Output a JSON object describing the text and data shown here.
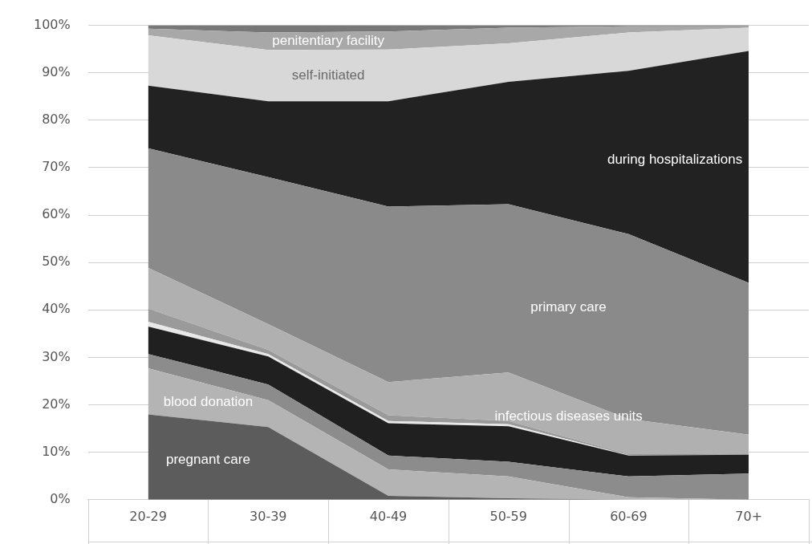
{
  "chart_data": {
    "type": "area",
    "stacked": true,
    "categories": [
      "20-29",
      "30-39",
      "40-49",
      "50-59",
      "60-69",
      "70+"
    ],
    "series": [
      {
        "name": "pregnant care",
        "color": "#5c5c5c",
        "values": [
          18,
          15.3,
          0.8,
          0.3,
          0,
          0
        ]
      },
      {
        "name": "blood donation",
        "color": "#b4b4b4",
        "values": [
          9.7,
          5.7,
          5.6,
          4.6,
          0.5,
          0
        ]
      },
      {
        "color": "#8c8c8c",
        "values": [
          3,
          3.3,
          2.9,
          3.1,
          4.4,
          5.5
        ]
      },
      {
        "color": "#202020",
        "values": [
          5.8,
          5.9,
          6.8,
          7.5,
          4.4,
          4
        ]
      },
      {
        "color": "#e8e8e8",
        "values": [
          1,
          0.5,
          0.5,
          0.4,
          0.1,
          0
        ]
      },
      {
        "color": "#9a9a9a",
        "values": [
          2.8,
          0.9,
          1.2,
          0.7,
          0.2,
          0.1
        ]
      },
      {
        "name": "infectious diseases units",
        "color": "#b0b0b0",
        "values": [
          8.6,
          5.4,
          7,
          10.2,
          7.4,
          4.1
        ]
      },
      {
        "name": "primary care",
        "color": "#8a8a8a",
        "values": [
          25.2,
          31,
          37,
          35.5,
          39,
          32
        ]
      },
      {
        "name": "during hospitalizations",
        "color": "#222222",
        "values": [
          13.2,
          16,
          22.2,
          25.8,
          34.4,
          48.9
        ]
      },
      {
        "name": "self-initiated",
        "color": "#d8d8d8",
        "values": [
          10.6,
          10.8,
          10.9,
          8.1,
          8.1,
          4.9
        ]
      },
      {
        "name": "penitentiary facility",
        "color": "#a8a8a8",
        "values": [
          1.4,
          3.7,
          3.8,
          3.3,
          1.3,
          0.3
        ]
      },
      {
        "color": "#787878",
        "values": [
          0.7,
          1.5,
          1.3,
          0.5,
          0.2,
          0.2
        ]
      }
    ],
    "ylim": [
      0,
      100
    ],
    "yticks": [
      {
        "value": 0,
        "label": "0%"
      },
      {
        "value": 10,
        "label": "10%"
      },
      {
        "value": 20,
        "label": "20%"
      },
      {
        "value": 30,
        "label": "30%"
      },
      {
        "value": 40,
        "label": "40%"
      },
      {
        "value": 50,
        "label": "50%"
      },
      {
        "value": 60,
        "label": "60%"
      },
      {
        "value": 70,
        "label": "70%"
      },
      {
        "value": 80,
        "label": "80%"
      },
      {
        "value": 90,
        "label": "90%"
      },
      {
        "value": 100,
        "label": "100%"
      }
    ],
    "grid": "y"
  }
}
